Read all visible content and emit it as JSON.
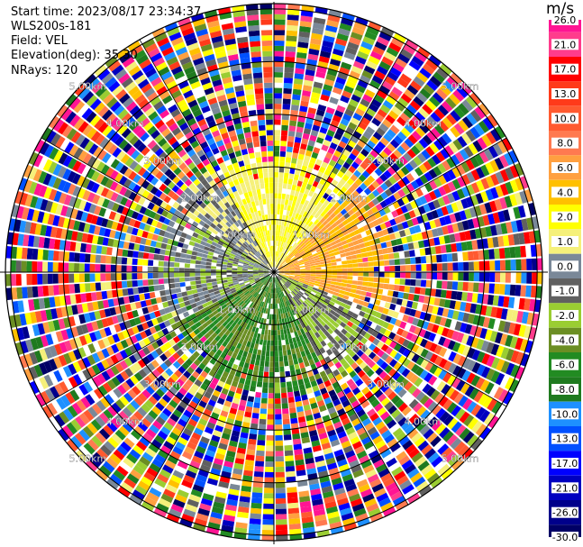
{
  "info": {
    "start_time": "Start time: 2023/08/17 23:34:37",
    "lidar": "WLS200s-181",
    "field": "Field: VEL",
    "elevation": "Elevation(deg): 35.30",
    "nrays": "NRays: 120"
  },
  "chart_data": {
    "type": "heatmap",
    "subtype": "ppi-polar",
    "n_rays": 120,
    "range_rings_km": [
      1,
      2,
      3,
      4,
      5
    ],
    "range_ring_labels": [
      "1.00km",
      "2.00km",
      "3.00km",
      "4.00km",
      "5.00km"
    ],
    "valid_range_km": 2.3,
    "max_range_km": 5.1,
    "colorbar": {
      "unit": "m/s",
      "ticks": [
        "26.0",
        "21.0",
        "17.0",
        "13.0",
        "10.0",
        "8.0",
        "6.0",
        "4.0",
        "2.0",
        "1.0",
        "0.0",
        "-1.0",
        "-2.0",
        "-4.0",
        "-6.0",
        "-8.0",
        "-10.0",
        "-13.0",
        "-17.0",
        "-21.0",
        "-26.0",
        "-30.0"
      ],
      "colors": [
        "#ff1493",
        "#ff3c8c",
        "#ff0000",
        "#ff3a1a",
        "#ff5a30",
        "#ff7a50",
        "#ffa040",
        "#ffc000",
        "#ffff00",
        "#f5f07a",
        "#7a8898",
        "#606060",
        "#9acd32",
        "#6b8e23",
        "#228b22",
        "#1f7a1f",
        "#1e90ff",
        "#0050ff",
        "#0000ff",
        "#0000c0",
        "#00008b",
        "#000066"
      ]
    },
    "sectors": [
      {
        "from_deg": -30,
        "to_deg": 40,
        "values": [
          1,
          2
        ]
      },
      {
        "from_deg": 40,
        "to_deg": 110,
        "values": [
          4,
          6
        ]
      },
      {
        "from_deg": 110,
        "to_deg": 150,
        "values": [
          -1,
          -2
        ]
      },
      {
        "from_deg": 150,
        "to_deg": 200,
        "values": [
          -4,
          -6,
          -8
        ]
      },
      {
        "from_deg": 200,
        "to_deg": 240,
        "values": [
          -4,
          -6
        ]
      },
      {
        "from_deg": 240,
        "to_deg": 300,
        "values": [
          0,
          -1,
          -2
        ]
      },
      {
        "from_deg": 300,
        "to_deg": 330,
        "values": [
          0,
          -1,
          1
        ]
      }
    ]
  }
}
